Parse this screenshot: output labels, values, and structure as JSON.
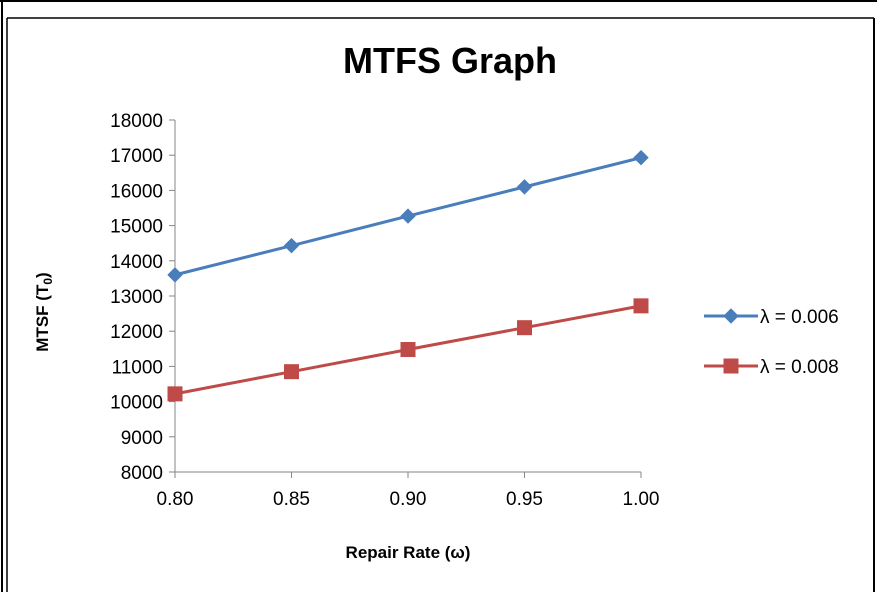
{
  "chart_data": {
    "type": "line",
    "title": "MTFS Graph",
    "xlabel": "Repair Rate (ω)",
    "ylabel_main": "MTSF (T",
    "ylabel_sub": "0",
    "ylabel_close": ")",
    "x": [
      0.8,
      0.85,
      0.9,
      0.95,
      1.0
    ],
    "x_tick_labels": [
      "0.80",
      "0.85",
      "0.90",
      "0.95",
      "1.00"
    ],
    "xlim": [
      0.8,
      1.0
    ],
    "ylim": [
      8000,
      18000
    ],
    "y_ticks": [
      8000,
      9000,
      10000,
      11000,
      12000,
      13000,
      14000,
      15000,
      16000,
      17000,
      18000
    ],
    "y_tick_labels": [
      "8000",
      "9000",
      "10000",
      "11000",
      "12000",
      "13000",
      "14000",
      "15000",
      "16000",
      "17000",
      "18000"
    ],
    "grid": false,
    "legend_position": "right",
    "series": [
      {
        "name": "λ = 0.006",
        "marker": "diamond",
        "color": "#4A7EBB",
        "values": [
          13600,
          14430,
          15270,
          16100,
          16930
        ]
      },
      {
        "name": "λ = 0.008",
        "marker": "square",
        "color": "#BE4B48",
        "values": [
          10220,
          10850,
          11480,
          12100,
          12720
        ]
      }
    ]
  }
}
